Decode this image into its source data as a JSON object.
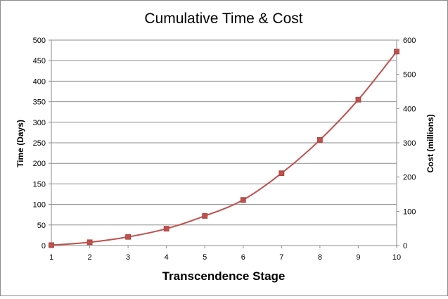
{
  "chart_data": {
    "type": "line",
    "title": "Cumulative Time & Cost",
    "xlabel": "Transcendence Stage",
    "ylabel": "Time (Days)",
    "y2label": "Cost (millions)",
    "x": [
      1,
      2,
      3,
      4,
      5,
      6,
      7,
      8,
      9,
      10
    ],
    "ylim": [
      0,
      500
    ],
    "yticks": [
      0,
      50,
      100,
      150,
      200,
      250,
      300,
      350,
      400,
      450,
      500
    ],
    "y2lim": [
      0,
      600
    ],
    "y2ticks": [
      0,
      100,
      200,
      300,
      400,
      500,
      600
    ],
    "grid": true,
    "legend": "none",
    "series": [
      {
        "axis": "left",
        "color": "#c0504d",
        "marker": "square",
        "values": [
          1,
          8,
          21,
          41,
          72,
          111,
          176,
          257,
          355,
          472
        ]
      }
    ]
  }
}
